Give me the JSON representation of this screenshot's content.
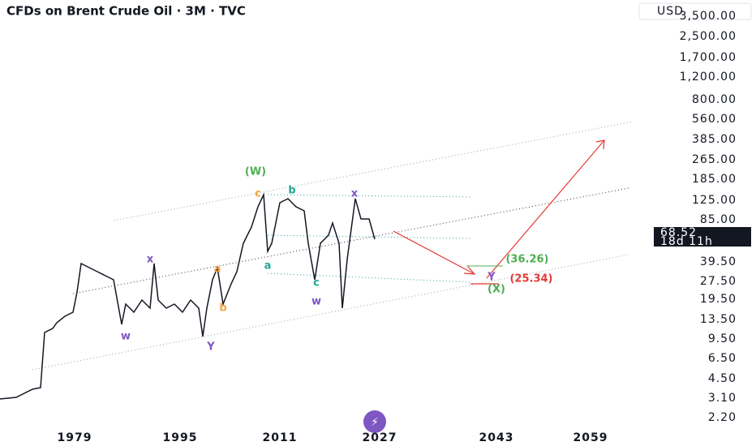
{
  "header": {
    "title": "CFDs on Brent Crude Oil · 3M · TVC",
    "currency": "USD"
  },
  "price_axis": [
    "3,500.00",
    "2,500.00",
    "1,700.00",
    "1,200.00",
    "800.00",
    "560.00",
    "385.00",
    "265.00",
    "185.00",
    "125.00",
    "85.00",
    "39.50",
    "27.50",
    "19.50",
    "13.50",
    "9.50",
    "6.50",
    "4.50",
    "3.10",
    "2.20"
  ],
  "last_price": {
    "price": "68.52",
    "countdown": "18d 11h"
  },
  "time_axis": [
    "1979",
    "1995",
    "2011",
    "2027",
    "2043",
    "2059"
  ],
  "wave_labels": [
    "(W)",
    "b",
    "c",
    "x",
    "a",
    "c",
    "w",
    "x",
    "a",
    "b",
    "w",
    "Y",
    "(36.26)",
    "(25.34)",
    "Y",
    "(X)"
  ]
}
